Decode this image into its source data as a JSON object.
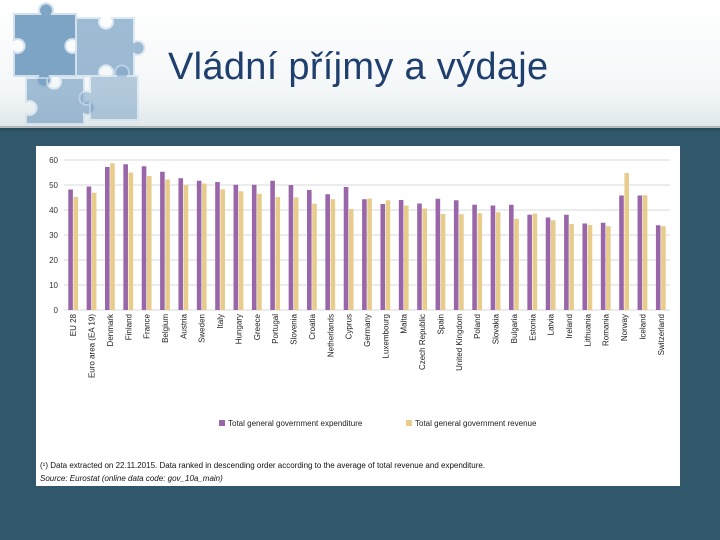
{
  "slide": {
    "title": "Vládní příjmy a výdaje"
  },
  "colors": {
    "expenditure": "#9966aa",
    "revenue": "#e8cc8c",
    "grid": "#d9d9d9",
    "axis_text": "#333333",
    "background": "#30586a"
  },
  "footnotes": {
    "note": "(¹) Data extracted on 22.11.2015. Data ranked in descending order according to the average of total revenue and expenditure.",
    "source_label": "Source:",
    "source_text": " Eurostat (online data code: gov_10a_main)"
  },
  "chart_data": {
    "type": "bar",
    "title": "",
    "xlabel": "",
    "ylabel": "",
    "ylim": [
      0,
      60
    ],
    "yticks": [
      0,
      10,
      20,
      30,
      40,
      50,
      60
    ],
    "grid": true,
    "legend_position": "bottom-center",
    "categories": [
      "EU 28",
      "Euro area (EA 19)",
      "Denmark",
      "Finland",
      "France",
      "Belgium",
      "Austria",
      "Sweden",
      "Italy",
      "Hungary",
      "Greece",
      "Portugal",
      "Slovenia",
      "Croatia",
      "Netherlands",
      "Cyprus",
      "Germany",
      "Luxembourg",
      "Malta",
      "Czech Republic",
      "Spain",
      "United Kingdom",
      "Poland",
      "Slovakia",
      "Bulgaria",
      "Estonia",
      "Latvia",
      "Ireland",
      "Lithuania",
      "Romania",
      "Norway",
      "Iceland",
      "Switzerland"
    ],
    "series": [
      {
        "name": "Total general government expenditure",
        "values": [
          48.2,
          49.4,
          57.2,
          58.3,
          57.5,
          55.3,
          52.7,
          51.7,
          51.2,
          50.1,
          50.1,
          51.7,
          50.0,
          48.0,
          46.3,
          49.2,
          44.3,
          42.4,
          44.0,
          42.6,
          44.5,
          43.9,
          42.1,
          41.8,
          42.1,
          38.1,
          37.0,
          38.1,
          34.6,
          34.9,
          45.8,
          45.8,
          33.9
        ]
      },
      {
        "name": "Total general government revenue",
        "values": [
          45.2,
          46.9,
          58.7,
          55.0,
          53.6,
          52.2,
          50.0,
          50.6,
          48.3,
          47.5,
          46.5,
          45.2,
          45.0,
          42.5,
          44.3,
          40.4,
          44.6,
          43.9,
          41.8,
          40.6,
          38.4,
          38.3,
          38.7,
          39.1,
          36.5,
          38.6,
          35.9,
          34.4,
          34.0,
          33.5,
          54.8,
          45.9,
          33.5
        ]
      }
    ]
  }
}
